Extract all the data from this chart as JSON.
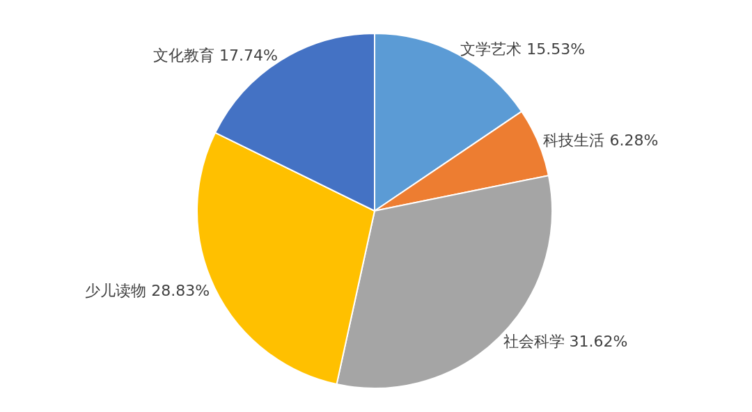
{
  "chart_data": {
    "type": "pie",
    "categories": [
      "文学艺术",
      "科技生活",
      "社会科学",
      "少儿读物",
      "文化教育"
    ],
    "values": [
      15.53,
      6.28,
      31.62,
      28.83,
      17.74
    ],
    "value_labels": [
      "15.53%",
      "6.28%",
      "31.62%",
      "28.83%",
      "17.74%"
    ],
    "colors": [
      "#5b9bd5",
      "#ed7d31",
      "#a5a5a5",
      "#ffc000",
      "#4472c4"
    ],
    "legend": false
  }
}
